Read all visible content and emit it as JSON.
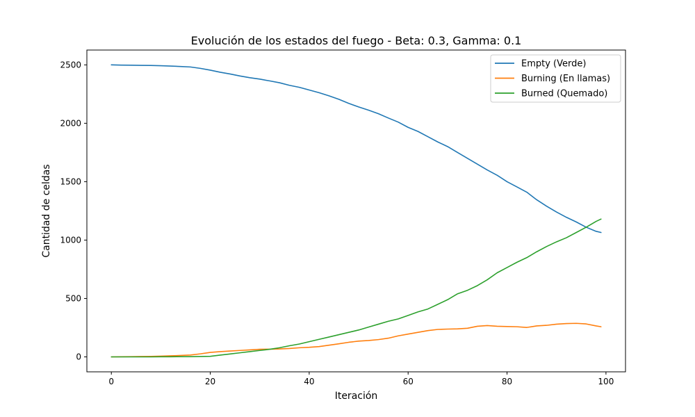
{
  "chart_data": {
    "type": "line",
    "title": "Evolución de los estados del fuego - Beta: 0.3, Gamma: 0.1",
    "xlabel": "Iteración",
    "ylabel": "Cantidad de celdas",
    "xlim": [
      -4.95,
      103.95
    ],
    "ylim": [
      -128,
      2627
    ],
    "xticks": [
      0,
      20,
      40,
      60,
      80,
      100
    ],
    "yticks": [
      0,
      500,
      1000,
      1500,
      2000,
      2500
    ],
    "legend_position": "top-right",
    "grid": false,
    "series": [
      {
        "name": "Empty (Verde)",
        "color": "#1f77b4",
        "x": [
          0,
          2,
          4,
          6,
          8,
          10,
          12,
          14,
          16,
          18,
          20,
          22,
          24,
          26,
          28,
          30,
          32,
          34,
          36,
          38,
          40,
          42,
          44,
          46,
          48,
          50,
          52,
          54,
          56,
          58,
          60,
          62,
          64,
          66,
          68,
          70,
          72,
          74,
          76,
          78,
          80,
          82,
          84,
          86,
          88,
          90,
          92,
          94,
          96,
          98,
          99
        ],
        "values": [
          2500,
          2498,
          2497,
          2496,
          2495,
          2493,
          2490,
          2486,
          2482,
          2470,
          2455,
          2437,
          2422,
          2405,
          2390,
          2378,
          2363,
          2347,
          2325,
          2308,
          2285,
          2262,
          2235,
          2205,
          2170,
          2140,
          2112,
          2082,
          2045,
          2010,
          1965,
          1930,
          1885,
          1840,
          1800,
          1750,
          1700,
          1650,
          1600,
          1555,
          1500,
          1455,
          1410,
          1345,
          1290,
          1240,
          1195,
          1155,
          1110,
          1075,
          1065
        ]
      },
      {
        "name": "Burning (En llamas)",
        "color": "#ff7f0e",
        "x": [
          0,
          2,
          4,
          6,
          8,
          10,
          12,
          14,
          16,
          18,
          20,
          22,
          24,
          26,
          28,
          30,
          32,
          34,
          36,
          38,
          40,
          42,
          44,
          46,
          48,
          50,
          52,
          54,
          56,
          58,
          60,
          62,
          64,
          66,
          68,
          70,
          72,
          74,
          76,
          78,
          80,
          82,
          84,
          86,
          88,
          90,
          92,
          94,
          96,
          98,
          99
        ],
        "values": [
          0,
          1,
          2,
          3,
          4,
          6,
          9,
          12,
          16,
          26,
          38,
          45,
          50,
          55,
          60,
          65,
          66,
          68,
          72,
          78,
          82,
          88,
          100,
          112,
          125,
          135,
          140,
          148,
          160,
          180,
          195,
          210,
          225,
          235,
          238,
          240,
          245,
          262,
          268,
          262,
          260,
          258,
          252,
          265,
          270,
          280,
          285,
          287,
          282,
          265,
          258
        ]
      },
      {
        "name": "Burned (Quemado)",
        "color": "#2ca02c",
        "x": [
          0,
          2,
          4,
          6,
          8,
          10,
          12,
          14,
          16,
          18,
          20,
          22,
          24,
          26,
          28,
          30,
          32,
          34,
          36,
          38,
          40,
          42,
          44,
          46,
          48,
          50,
          52,
          54,
          56,
          58,
          60,
          62,
          64,
          66,
          68,
          70,
          72,
          74,
          76,
          78,
          80,
          82,
          84,
          86,
          88,
          90,
          92,
          94,
          96,
          98,
          99
        ],
        "values": [
          0,
          0,
          0,
          0,
          0,
          1,
          1,
          2,
          2,
          3,
          5,
          15,
          25,
          35,
          45,
          55,
          65,
          78,
          95,
          110,
          130,
          150,
          170,
          190,
          210,
          230,
          255,
          280,
          305,
          325,
          355,
          385,
          410,
          450,
          490,
          540,
          570,
          610,
          660,
          720,
          765,
          810,
          850,
          900,
          945,
          985,
          1020,
          1065,
          1110,
          1160,
          1180
        ]
      }
    ]
  }
}
